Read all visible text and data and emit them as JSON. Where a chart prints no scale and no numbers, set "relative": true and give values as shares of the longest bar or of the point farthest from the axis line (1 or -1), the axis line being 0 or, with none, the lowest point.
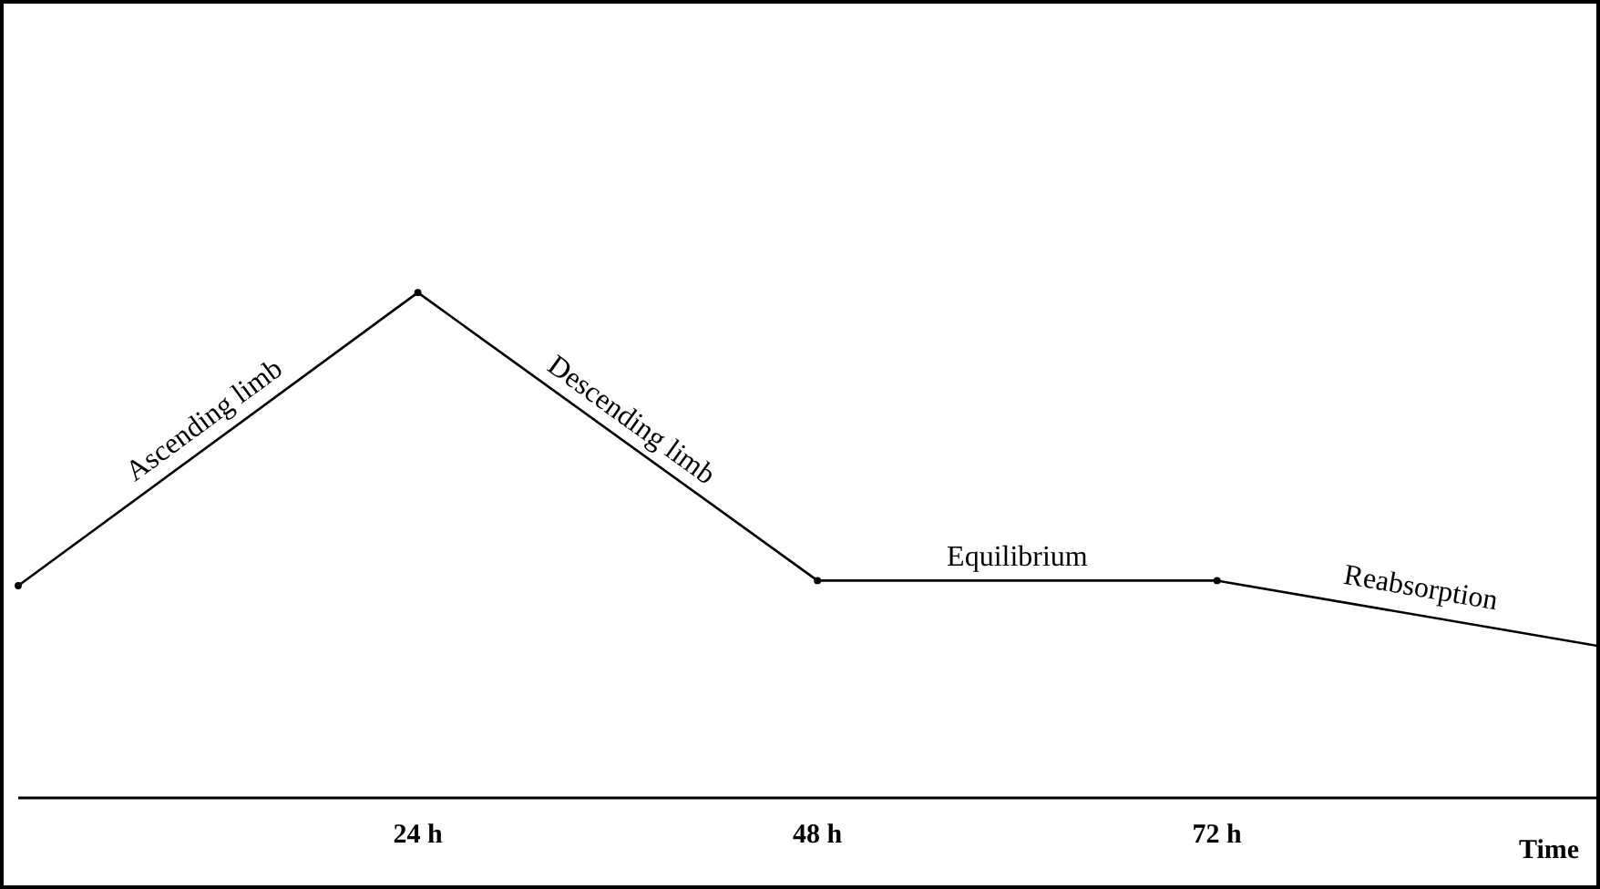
{
  "chart_data": {
    "type": "line",
    "relative": true,
    "xlabel": "Time",
    "x": [
      0,
      24,
      48,
      72,
      95
    ],
    "series": [
      {
        "color": "#000000",
        "values": [
          0.42,
          1,
          0.43,
          0.43,
          0.3
        ]
      }
    ],
    "xlim": [
      0,
      95
    ],
    "xticks": [
      {
        "value": 24,
        "label": "24 h"
      },
      {
        "value": 48,
        "label": "48 h"
      },
      {
        "value": 72,
        "label": "72 h"
      }
    ],
    "marker": "circle",
    "annotations": [
      {
        "text": "Ascending limb",
        "x": 12,
        "y": 0.71
      },
      {
        "text": "Descending limb",
        "x": 36,
        "y": 0.71
      },
      {
        "text": "Equilibrium",
        "x": 60,
        "y": 0.43
      },
      {
        "text": "Reabsorption",
        "x": 84,
        "y": 0.37
      }
    ]
  }
}
